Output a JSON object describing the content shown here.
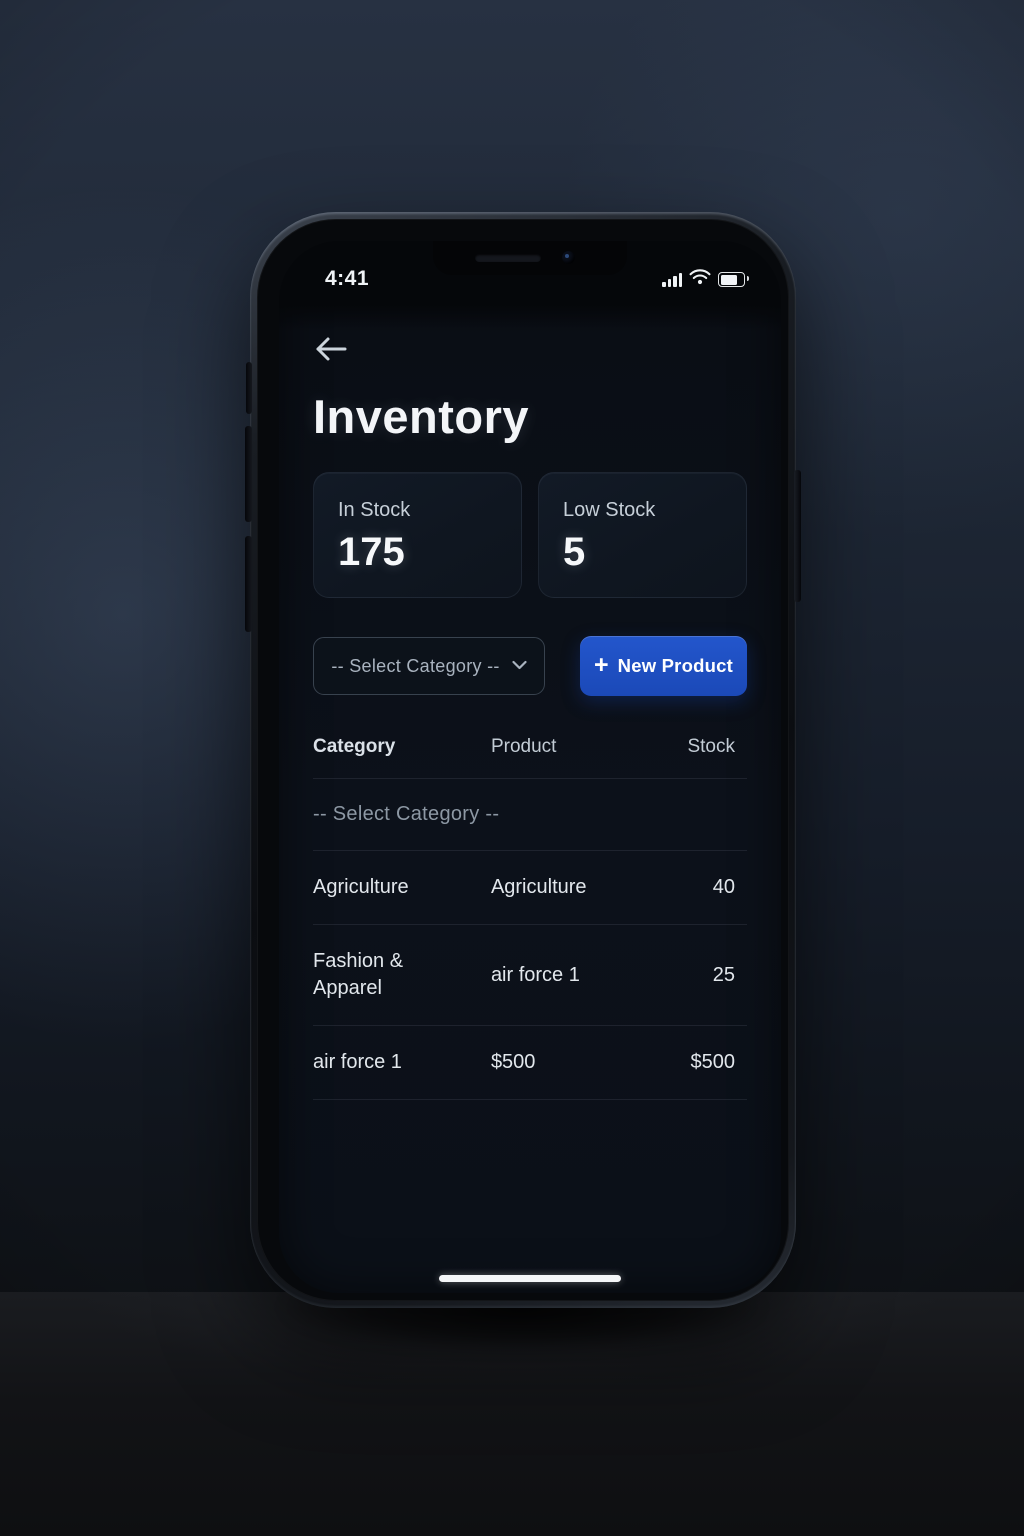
{
  "status_bar": {
    "time": "4:41",
    "icons": [
      "signal-icon",
      "wifi-icon",
      "battery-icon"
    ]
  },
  "header": {
    "title": "Inventory",
    "back_icon": "back-arrow-icon"
  },
  "stats": [
    {
      "label": "In Stock",
      "value": "175"
    },
    {
      "label": "Low Stock",
      "value": "5"
    }
  ],
  "controls": {
    "category_dropdown": {
      "value": "-- Select Category --",
      "icon": "chevron-down-icon"
    },
    "new_product_button": {
      "plus": "+",
      "label": "New Product"
    }
  },
  "table": {
    "headers": [
      "Category",
      "Product",
      "Stock"
    ],
    "placeholder_row": "-- Select Category --",
    "rows": [
      {
        "category": "Agriculture",
        "product": "Agriculture",
        "stock": "40"
      },
      {
        "category": "Fashion & Apparel",
        "product": "air force 1",
        "stock": "25"
      },
      {
        "category": "air force 1",
        "product": "$500",
        "stock": "$500"
      }
    ]
  },
  "colors": {
    "accent_blue": "#1e4fc2",
    "screen_bg": "#0c111a",
    "card_border": "#1e2834"
  }
}
